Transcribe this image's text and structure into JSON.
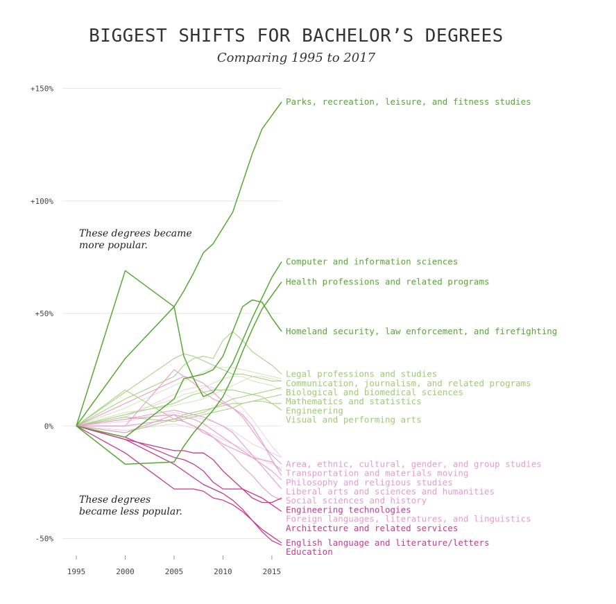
{
  "chart_data": {
    "type": "line",
    "title": "BIGGEST SHIFTS FOR BACHELOR’S DEGREES",
    "subtitle": "Comparing 1995 to 2017",
    "x": [
      1995,
      2000,
      2005,
      2006,
      2007,
      2008,
      2009,
      2010,
      2011,
      2012,
      2013,
      2014,
      2015,
      2016
    ],
    "xticks": [
      "1995",
      "2000",
      "2005",
      "2010",
      "2015"
    ],
    "yticks": [
      "+150%",
      "+100%",
      "+50%",
      "0%",
      "-50%"
    ],
    "ylim": [
      -58,
      152
    ],
    "xlim": [
      1995,
      2016
    ],
    "annotations": [
      "These degrees became more popular.",
      "These degrees became less popular."
    ],
    "colors": {
      "strong_green": "#56a832",
      "light_green": "#a6d280",
      "faint_green": "#cfe6b5",
      "strong_pink": "#c8388f",
      "light_pink": "#e59ccb",
      "faint_pink": "#f1cde3",
      "grid": "#e6e6e6"
    },
    "series": [
      {
        "name": "Parks, recreation, leisure, and fitness studies",
        "tone": "strong_green",
        "labeled": true,
        "values": [
          0,
          30,
          53,
          60,
          68,
          77,
          81,
          88,
          95,
          108,
          121,
          132,
          138,
          144
        ]
      },
      {
        "name": "Computer and information sciences",
        "tone": "strong_green",
        "labeled": true,
        "values": [
          0,
          69,
          53,
          31,
          21,
          13,
          15,
          21,
          28,
          38,
          48,
          57,
          66,
          73
        ]
      },
      {
        "name": "Health professions and related programs",
        "tone": "strong_green",
        "labeled": true,
        "values": [
          0,
          -17,
          -16,
          -9,
          -3,
          2,
          7,
          13,
          22,
          33,
          43,
          52,
          58,
          64
        ]
      },
      {
        "name": "Homeland security, law enforcement, and firefighting",
        "tone": "strong_green",
        "labeled": true,
        "values": [
          0,
          -5,
          12,
          21,
          22,
          23,
          25,
          31,
          42,
          53,
          56,
          55,
          48,
          42
        ]
      },
      {
        "name": "Legal professions and studies",
        "tone": "light_green",
        "labeled": true,
        "values": [
          0,
          12,
          22,
          27,
          30,
          31,
          30,
          38,
          42,
          38,
          33,
          30,
          27,
          23
        ]
      },
      {
        "name": "Communication, journalism, and related programs",
        "tone": "light_green",
        "labeled": true,
        "values": [
          0,
          15,
          30,
          32,
          31,
          29,
          27,
          25,
          23,
          23,
          22,
          21,
          20,
          20
        ]
      },
      {
        "name": "Biological and biomedical sciences",
        "tone": "light_green",
        "labeled": true,
        "values": [
          0,
          16,
          3,
          4,
          5,
          6,
          8,
          10,
          12,
          13,
          14,
          15,
          16,
          17
        ]
      },
      {
        "name": "Mathematics and statistics",
        "tone": "light_green",
        "labeled": true,
        "values": [
          0,
          4,
          2,
          3,
          4,
          5,
          6,
          7,
          8,
          10,
          11,
          12,
          13,
          14
        ]
      },
      {
        "name": "Engineering",
        "tone": "light_green",
        "labeled": true,
        "values": [
          0,
          -3,
          3,
          5,
          6,
          7,
          8,
          9,
          10,
          10,
          11,
          11,
          10,
          10
        ]
      },
      {
        "name": "Visual and performing arts",
        "tone": "light_green",
        "labeled": true,
        "values": [
          0,
          5,
          10,
          12,
          14,
          15,
          16,
          16,
          16,
          15,
          14,
          13,
          10,
          7
        ]
      },
      {
        "name": "Area, ethnic, cultural, gender, and group studies",
        "tone": "light_pink",
        "labeled": true,
        "values": [
          0,
          10,
          20,
          22,
          21,
          19,
          15,
          11,
          8,
          4,
          -2,
          -8,
          -13,
          -17
        ]
      },
      {
        "name": "Transportation and materials moving",
        "tone": "light_pink",
        "labeled": true,
        "values": [
          0,
          -3,
          5,
          2,
          0,
          -3,
          -5,
          -8,
          -10,
          -12,
          -14,
          -15,
          -16,
          -20
        ]
      },
      {
        "name": "Philosophy and religious studies",
        "tone": "light_pink",
        "labeled": true,
        "values": [
          0,
          0,
          25,
          22,
          19,
          15,
          12,
          10,
          8,
          5,
          0,
          -7,
          -15,
          -22
        ]
      },
      {
        "name": "Liberal arts and sciences and humanities",
        "tone": "light_pink",
        "labeled": true,
        "values": [
          0,
          3,
          5,
          4,
          3,
          1,
          -2,
          -5,
          -8,
          -11,
          -14,
          -17,
          -20,
          -24
        ]
      },
      {
        "name": "Social sciences and history",
        "tone": "light_pink",
        "labeled": true,
        "values": [
          0,
          3,
          7,
          6,
          5,
          4,
          2,
          0,
          -3,
          -8,
          -13,
          -18,
          -23,
          -28
        ]
      },
      {
        "name": "Foreign languages, literatures, and linguistics",
        "tone": "light_pink",
        "labeled": true,
        "values": [
          0,
          0,
          3,
          2,
          0,
          -2,
          -5,
          -9,
          -13,
          -18,
          -22,
          -27,
          -31,
          -33
        ]
      },
      {
        "name": "Engineering technologies",
        "tone": "strong_pink",
        "labeled": true,
        "values": [
          0,
          -6,
          -11,
          -11,
          -12,
          -12,
          -15,
          -20,
          -24,
          -28,
          -32,
          -34,
          -34,
          -32
        ]
      },
      {
        "name": "Architecture and related services",
        "tone": "strong_pink",
        "labeled": true,
        "values": [
          0,
          -5,
          -14,
          -15,
          -17,
          -20,
          -25,
          -28,
          -28,
          -28,
          -30,
          -32,
          -35,
          -38
        ]
      },
      {
        "name": "English language and literature/letters",
        "tone": "strong_pink",
        "labeled": true,
        "values": [
          0,
          -6,
          -17,
          -20,
          -23,
          -26,
          -28,
          -30,
          -33,
          -37,
          -42,
          -46,
          -49,
          -52
        ]
      },
      {
        "name": "Education",
        "tone": "strong_pink",
        "labeled": true,
        "values": [
          0,
          -12,
          -28,
          -28,
          -28,
          -29,
          -32,
          -33,
          -35,
          -38,
          -42,
          -47,
          -51,
          -53
        ]
      },
      {
        "tone": "faint_green",
        "labeled": false,
        "values": [
          0,
          8,
          18,
          20,
          22,
          24,
          26,
          26,
          26,
          25,
          24,
          23,
          22,
          21
        ]
      },
      {
        "tone": "faint_green",
        "labeled": false,
        "values": [
          0,
          6,
          9,
          10,
          11,
          12,
          14,
          16,
          18,
          20,
          22,
          22,
          21,
          20
        ]
      },
      {
        "tone": "faint_green",
        "labeled": false,
        "values": [
          0,
          5,
          12,
          14,
          15,
          17,
          19,
          21,
          22,
          22,
          20,
          19,
          18,
          16
        ]
      },
      {
        "tone": "faint_pink",
        "labeled": false,
        "values": [
          0,
          2,
          6,
          5,
          4,
          3,
          2,
          0,
          -2,
          -5,
          -8,
          -10,
          -12,
          -14
        ]
      },
      {
        "tone": "faint_pink",
        "labeled": false,
        "values": [
          0,
          -2,
          1,
          0,
          -1,
          -2,
          -4,
          -6,
          -8,
          -10,
          -13,
          -15,
          -17,
          -19
        ]
      },
      {
        "tone": "faint_pink",
        "labeled": false,
        "values": [
          0,
          4,
          14,
          16,
          17,
          18,
          17,
          15,
          12,
          8,
          3,
          -3,
          -9,
          -14
        ]
      }
    ]
  }
}
